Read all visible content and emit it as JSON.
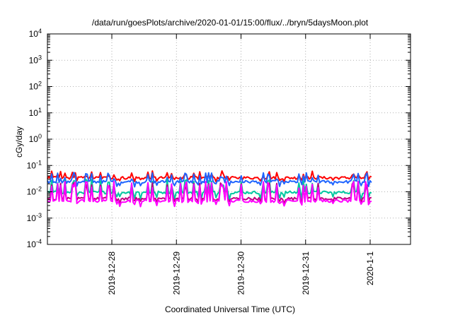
{
  "chart_data": {
    "type": "line",
    "title": "/data/run/goesPlots/archive/2020-01-01/15:00/flux/../bryn/5daysMoon.plot",
    "xlabel": "Coordinated Universal Time (UTC)",
    "ylabel": "cGy/day",
    "yscale": "log",
    "ylim": [
      0.0001,
      10000
    ],
    "xlim": [
      0,
      5
    ],
    "grid": true,
    "x_ticks": [
      {
        "x": 1.0,
        "label": "2019-12-28"
      },
      {
        "x": 2.0,
        "label": "2019-12-29"
      },
      {
        "x": 3.0,
        "label": "2019-12-30"
      },
      {
        "x": 4.0,
        "label": "2019-12-31"
      },
      {
        "x": 5.0,
        "label": "2020-1-1"
      }
    ],
    "y_ticks": [
      {
        "exp": "-4",
        "value": 0.0001
      },
      {
        "exp": "-3",
        "value": 0.001
      },
      {
        "exp": "-2",
        "value": 0.01
      },
      {
        "exp": "-1",
        "value": 0.1
      },
      {
        "exp": "0",
        "value": 1
      },
      {
        "exp": "1",
        "value": 10
      },
      {
        "exp": "2",
        "value": 100
      },
      {
        "exp": "3",
        "value": 1000
      },
      {
        "exp": "4",
        "value": 10000
      }
    ],
    "y_tick_base": "10",
    "series": [
      {
        "color": "#ff0000",
        "base": 0.034,
        "spike": 0.062,
        "dip": 0.028
      },
      {
        "color": "#1e64ff",
        "base": 0.024,
        "spike": 0.055,
        "dip": 0.018
      },
      {
        "color": "#00c8a0",
        "base": 0.0095,
        "spike": 0.03,
        "dip": 0.006
      },
      {
        "color": "#c00080",
        "base": 0.0055,
        "spike": 0.022,
        "dip": 0.0042
      },
      {
        "color": "#ff00ff",
        "base": 0.0045,
        "spike": 0.025,
        "dip": 0.0032
      }
    ]
  }
}
